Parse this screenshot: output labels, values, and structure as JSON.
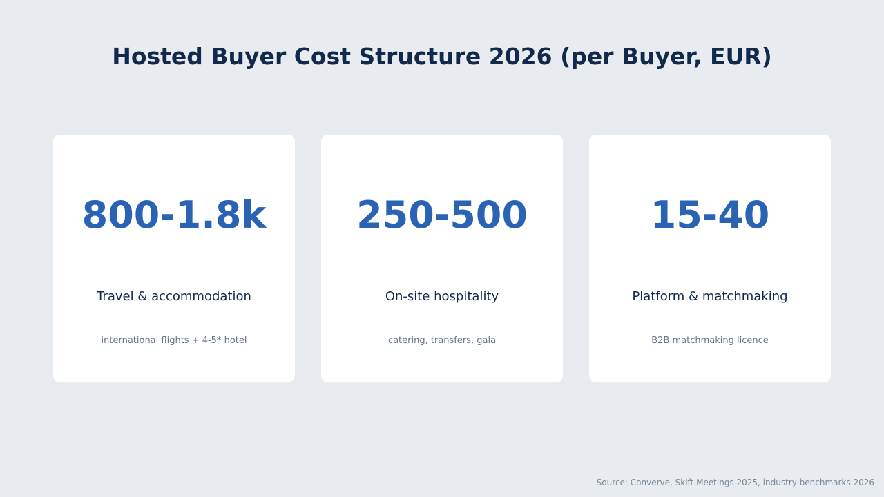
{
  "title": "Hosted Buyer Cost Structure 2026 (per Buyer, EUR)",
  "cards": [
    {
      "value": "800-1.8k",
      "label": "Travel & accommodation",
      "description": "international flights + 4-5* hotel"
    },
    {
      "value": "250-500",
      "label": "On-site hospitality",
      "description": "catering, transfers, gala"
    },
    {
      "value": "15-40",
      "label": "Platform & matchmaking",
      "description": "B2B matchmaking licence"
    }
  ],
  "source": "Source: Converve, Skift Meetings 2025, industry benchmarks 2026",
  "colors": {
    "background": "#e8ecf0",
    "title": "#13294b",
    "value": "#2a63b4",
    "description": "#647487"
  }
}
